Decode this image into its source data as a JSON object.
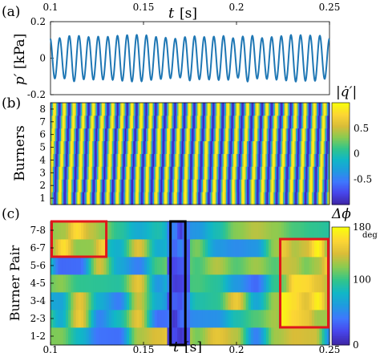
{
  "panels": {
    "a": {
      "tag": "(a)"
    },
    "b": {
      "tag": "(b)"
    },
    "c": {
      "tag": "(c)"
    }
  },
  "time_axis": {
    "ticks": [
      "0.1",
      "0.15",
      "0.2",
      "0.25"
    ],
    "values": [
      0.1,
      0.15,
      0.2,
      0.25
    ],
    "range": [
      0.1,
      0.25
    ],
    "label_var": "t",
    "label_unit": "[s]"
  },
  "colorbar_q": {
    "label": "|q̇′|",
    "ticks": [
      "0.5",
      "0",
      "-0.5"
    ],
    "range": [
      -1,
      1
    ]
  },
  "colorbar_phi": {
    "label": "Δϕ",
    "ticks": [
      "180",
      "100",
      "0"
    ],
    "range": [
      0,
      180
    ],
    "unit": "deg"
  },
  "colormap": [
    "#3e26a8",
    "#4746eb",
    "#3f77fd",
    "#1f9bdf",
    "#11b7c6",
    "#33c589",
    "#8bcb50",
    "#d9bd38",
    "#fcd535",
    "#f9fb0e"
  ],
  "chart_data": [
    {
      "type": "line",
      "panel": "(a)",
      "xlabel": "t [s]",
      "ylabel": "p′ [kPa]",
      "xlim": [
        0.1,
        0.25
      ],
      "ylim": [
        -0.2,
        0.2
      ],
      "yticks": [
        "0.2",
        "0",
        "-0.2"
      ],
      "ytick_values": [
        0.2,
        0,
        -0.2
      ],
      "series": [
        {
          "color": "#1f77b4",
          "frequency_hz": 193,
          "amplitude_kpa": [
            0.1,
            0.13
          ]
        }
      ]
    },
    {
      "type": "heatmap",
      "panel": "(b)",
      "ylabel": "Burners",
      "rows": [
        "1",
        "2",
        "3",
        "4",
        "5",
        "6",
        "7",
        "8"
      ],
      "xlim": [
        0.1,
        0.25
      ],
      "value_range": [
        -1,
        1
      ],
      "oscillation_frequency_hz": 193,
      "phase_lag_per_burner_deg": [
        0,
        20,
        45,
        70,
        90,
        120,
        150,
        175
      ]
    },
    {
      "type": "heatmap",
      "panel": "(c)",
      "ylabel": "Burner Pair",
      "rows": [
        "1-2",
        "2-3",
        "3-4",
        "4-5",
        "5-6",
        "6-7",
        "7-8"
      ],
      "xlim": [
        0.1,
        0.25
      ],
      "value_range_deg": [
        0,
        180
      ],
      "highlight_boxes": [
        {
          "color": "#e0161b",
          "t": [
            0.1,
            0.13
          ],
          "rows": [
            "6-7",
            "7-8"
          ]
        },
        {
          "color": "#000000",
          "t": [
            0.1645,
            0.1725
          ],
          "rows": [
            "1-2",
            "7-8"
          ]
        },
        {
          "color": "#e0161b",
          "t": [
            0.2235,
            0.2505
          ],
          "rows": [
            "2-3",
            "6-7"
          ]
        }
      ]
    }
  ]
}
